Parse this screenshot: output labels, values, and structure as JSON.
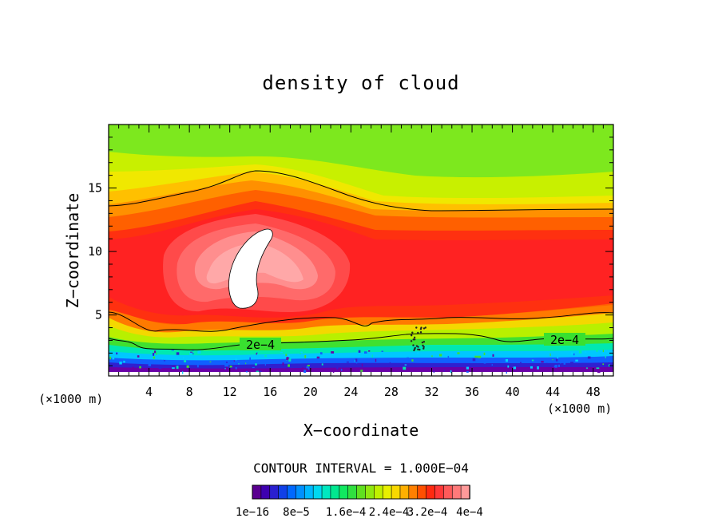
{
  "chart_data": {
    "type": "heatmap",
    "title": "density of cloud",
    "xlabel": "X−coordinate",
    "ylabel": "Z−coordinate",
    "x_unit_left": "(×1000 m)",
    "x_unit_right": "(×1000 m)",
    "xlim": [
      0,
      50
    ],
    "ylim": [
      0.2,
      20
    ],
    "x_ticks": [
      4,
      8,
      12,
      16,
      20,
      24,
      28,
      32,
      36,
      40,
      44,
      48
    ],
    "y_ticks": [
      5,
      10,
      15
    ],
    "contour_interval_text": "CONTOUR INTERVAL = 1.000E−04",
    "colorbar": {
      "colors": [
        "#5a0090",
        "#3e00b0",
        "#2a20d0",
        "#1040e8",
        "#0068ff",
        "#0090ff",
        "#00b8ff",
        "#00d8f0",
        "#00e8c0",
        "#00e890",
        "#10e860",
        "#30e040",
        "#60e020",
        "#90e810",
        "#c0f000",
        "#e8f000",
        "#f8d800",
        "#ffb000",
        "#ff8000",
        "#ff5000",
        "#ff2a10",
        "#ff3838",
        "#ff5a5a",
        "#ff7a7a",
        "#ff9a9a"
      ],
      "labels": [
        "1e−16",
        "8e−5",
        "1.6e−4",
        "2.4e−4",
        "3.2e−4",
        "4e−4"
      ]
    },
    "contour_labels": [
      {
        "text": "2e−4",
        "x": 15,
        "z": 2.6
      },
      {
        "text": "2e−4",
        "x": 45.5,
        "z": 3.0
      }
    ]
  }
}
